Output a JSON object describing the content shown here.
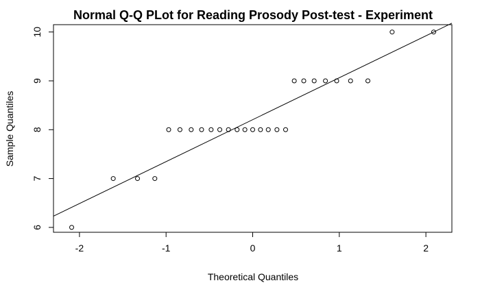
{
  "chart_data": {
    "type": "scatter",
    "title": "Normal Q-Q PLot for Reading Prosody Post-test - Experiment",
    "xlabel": "Theoretical Quantiles",
    "ylabel": "Sample Quantiles",
    "xlim": [
      -2.3,
      2.3
    ],
    "ylim": [
      5.9,
      10.15
    ],
    "xticks": [
      -2,
      -1,
      0,
      1,
      2
    ],
    "xtick_labels": [
      "-2",
      "-1",
      "0",
      "1",
      "2"
    ],
    "yticks": [
      6,
      7,
      8,
      9,
      10
    ],
    "ytick_labels": [
      "6",
      "7",
      "8",
      "9",
      "10"
    ],
    "grid": false,
    "points": [
      {
        "x": -2.09,
        "y": 6
      },
      {
        "x": -1.61,
        "y": 7
      },
      {
        "x": -1.33,
        "y": 7
      },
      {
        "x": -1.13,
        "y": 7
      },
      {
        "x": -0.97,
        "y": 8
      },
      {
        "x": -0.84,
        "y": 8
      },
      {
        "x": -0.71,
        "y": 8
      },
      {
        "x": -0.59,
        "y": 8
      },
      {
        "x": -0.48,
        "y": 8
      },
      {
        "x": -0.38,
        "y": 8
      },
      {
        "x": -0.28,
        "y": 8
      },
      {
        "x": -0.18,
        "y": 8
      },
      {
        "x": -0.09,
        "y": 8
      },
      {
        "x": 0.0,
        "y": 8
      },
      {
        "x": 0.09,
        "y": 8
      },
      {
        "x": 0.18,
        "y": 8
      },
      {
        "x": 0.28,
        "y": 8
      },
      {
        "x": 0.38,
        "y": 8
      },
      {
        "x": 0.48,
        "y": 9
      },
      {
        "x": 0.59,
        "y": 9
      },
      {
        "x": 0.71,
        "y": 9
      },
      {
        "x": 0.84,
        "y": 9
      },
      {
        "x": 0.97,
        "y": 9
      },
      {
        "x": 1.13,
        "y": 9
      },
      {
        "x": 1.33,
        "y": 9
      },
      {
        "x": 1.61,
        "y": 10
      },
      {
        "x": 2.09,
        "y": 10
      }
    ],
    "reference_line": {
      "x": [
        -2.3,
        2.3
      ],
      "y": [
        6.23,
        10.18
      ]
    }
  }
}
